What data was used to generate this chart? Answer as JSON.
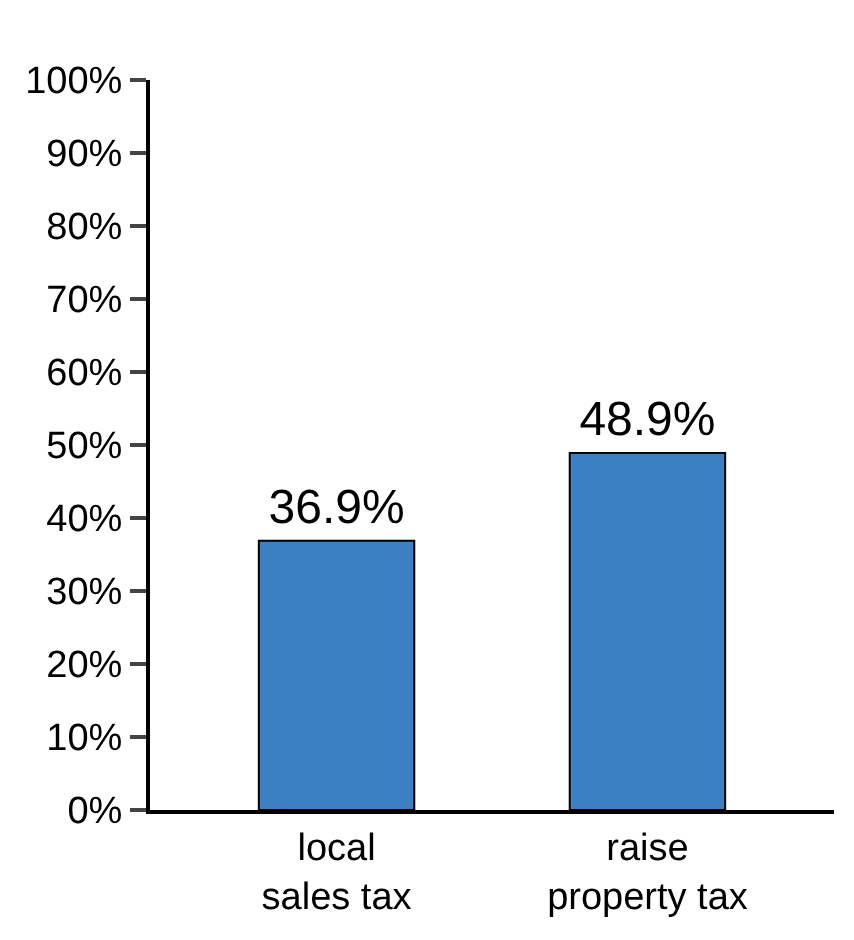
{
  "chart_data": {
    "type": "bar",
    "categories": [
      "local\nsales tax",
      "raise\nproperty tax"
    ],
    "values": [
      36.9,
      48.9
    ],
    "value_labels": [
      "36.9%",
      "48.9%"
    ],
    "color": "#3a80c2",
    "ylim": [
      0,
      100
    ],
    "yticks": [
      {
        "value": 0,
        "label": "0%"
      },
      {
        "value": 10,
        "label": "10%"
      },
      {
        "value": 20,
        "label": "20%"
      },
      {
        "value": 30,
        "label": "30%"
      },
      {
        "value": 40,
        "label": "40%"
      },
      {
        "value": 50,
        "label": "50%"
      },
      {
        "value": 60,
        "label": "60%"
      },
      {
        "value": 70,
        "label": "70%"
      },
      {
        "value": 80,
        "label": "80%"
      },
      {
        "value": 90,
        "label": "90%"
      },
      {
        "value": 100,
        "label": "100%"
      }
    ]
  }
}
